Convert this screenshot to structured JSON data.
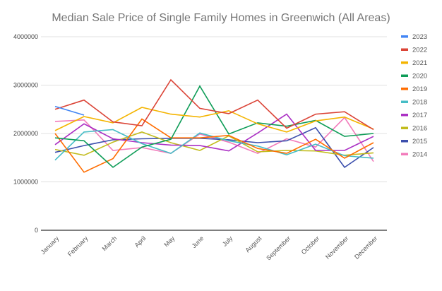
{
  "chart_data": {
    "type": "line",
    "title": "Median Sale Price of Single Family Homes in Greenwich (All Areas)",
    "xlabel": "",
    "ylabel": "",
    "ylim": [
      0,
      4000000
    ],
    "yticks": [
      "0",
      "1000000",
      "2000000",
      "3000000",
      "4000000"
    ],
    "grid": true,
    "legend_position": "right",
    "categories": [
      "January",
      "February",
      "March",
      "April",
      "May",
      "June",
      "July",
      "August",
      "September",
      "October",
      "November",
      "December"
    ],
    "series": [
      {
        "name": "2023",
        "color": "#4285f4",
        "values": [
          2560000,
          2380000,
          null,
          null,
          null,
          null,
          null,
          null,
          null,
          null,
          null,
          null
        ]
      },
      {
        "name": "2022",
        "color": "#db4437",
        "values": [
          2500000,
          2690000,
          2240000,
          2160000,
          3110000,
          2520000,
          2410000,
          2690000,
          2110000,
          2400000,
          2450000,
          2080000
        ]
      },
      {
        "name": "2021",
        "color": "#f4b400",
        "values": [
          2060000,
          2350000,
          2220000,
          2540000,
          2400000,
          2340000,
          2470000,
          2200000,
          2030000,
          2260000,
          2340000,
          2090000
        ]
      },
      {
        "name": "2020",
        "color": "#0f9d58",
        "values": [
          1910000,
          1850000,
          1300000,
          1720000,
          1880000,
          2980000,
          1990000,
          2220000,
          2150000,
          2270000,
          1940000,
          2000000
        ]
      },
      {
        "name": "2019",
        "color": "#ff6d01",
        "values": [
          2000000,
          1200000,
          1480000,
          2300000,
          1910000,
          1910000,
          1960000,
          1690000,
          1590000,
          1880000,
          1490000,
          1810000
        ]
      },
      {
        "name": "2018",
        "color": "#46bdc6",
        "values": [
          1450000,
          2030000,
          2080000,
          1790000,
          1590000,
          2010000,
          1850000,
          1740000,
          1560000,
          1780000,
          1540000,
          1490000
        ]
      },
      {
        "name": "2017",
        "color": "#ab30c4",
        "values": [
          1770000,
          2200000,
          1890000,
          1810000,
          1760000,
          1750000,
          1640000,
          2010000,
          2400000,
          1650000,
          1650000,
          1940000
        ]
      },
      {
        "name": "2016",
        "color": "#c2bc1d",
        "values": [
          1670000,
          1550000,
          1820000,
          2030000,
          1810000,
          1650000,
          1950000,
          1620000,
          1650000,
          1640000,
          1550000,
          1600000
        ]
      },
      {
        "name": "2015",
        "color": "#3c4fad",
        "values": [
          1610000,
          1750000,
          1870000,
          1890000,
          1900000,
          1900000,
          1870000,
          1810000,
          1850000,
          2120000,
          1300000,
          1710000
        ]
      },
      {
        "name": "2014",
        "color": "#f27bbb",
        "values": [
          2250000,
          2280000,
          1650000,
          1710000,
          1590000,
          1990000,
          1820000,
          1590000,
          1890000,
          1720000,
          2330000,
          1420000
        ]
      }
    ]
  }
}
